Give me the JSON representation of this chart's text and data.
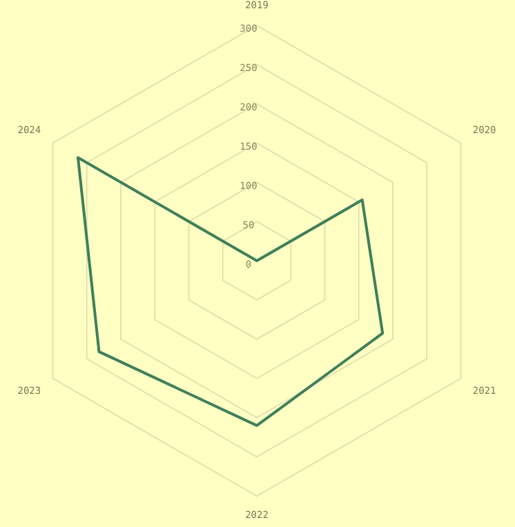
{
  "chart_data": {
    "type": "radar",
    "categories": [
      "2019",
      "2020",
      "2021",
      "2022",
      "2023",
      "2024"
    ],
    "series": [
      {
        "color": "#3f7f5a",
        "values": [
          0,
          155,
          185,
          210,
          232,
          263
        ]
      }
    ],
    "ylim": [
      0,
      300
    ],
    "yticks": [
      0,
      50,
      100,
      150,
      200,
      250,
      300
    ],
    "grid": true,
    "legend": false,
    "marker": "none",
    "line_style": "solid"
  }
}
